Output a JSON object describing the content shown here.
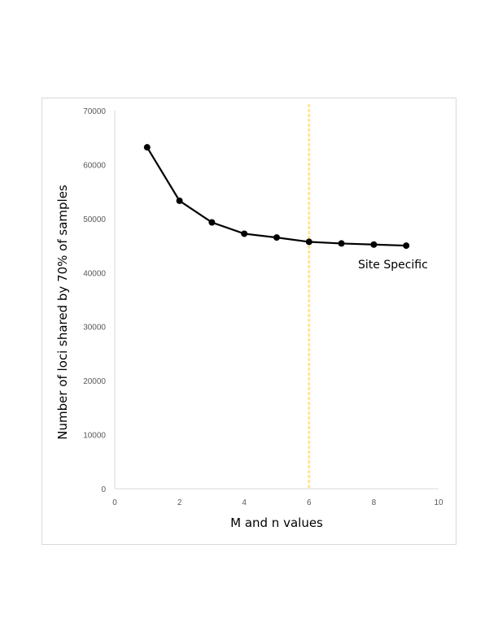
{
  "chart_data": {
    "type": "scatter",
    "title": "",
    "xlabel": "M and n values",
    "ylabel": "Number of loci shared by 70% of samples",
    "xlim": [
      0,
      10
    ],
    "ylim": [
      0,
      70000
    ],
    "xticks": [
      "0",
      "2",
      "4",
      "6",
      "8",
      "10"
    ],
    "yticks": [
      "0",
      "10000",
      "20000",
      "30000",
      "40000",
      "50000",
      "60000",
      "70000"
    ],
    "grid": false,
    "series": [
      {
        "x": [
          1,
          2,
          3,
          4,
          5,
          6,
          7,
          8,
          9
        ],
        "y": [
          63200,
          53300,
          49300,
          47200,
          46500,
          45700,
          45400,
          45200,
          45000
        ],
        "color": "#000000",
        "markers": true,
        "line": true
      }
    ],
    "reference_line": {
      "x": 6,
      "color": "#ffe699",
      "style": "dashed"
    },
    "annotation": {
      "text": "Site Specific"
    }
  }
}
